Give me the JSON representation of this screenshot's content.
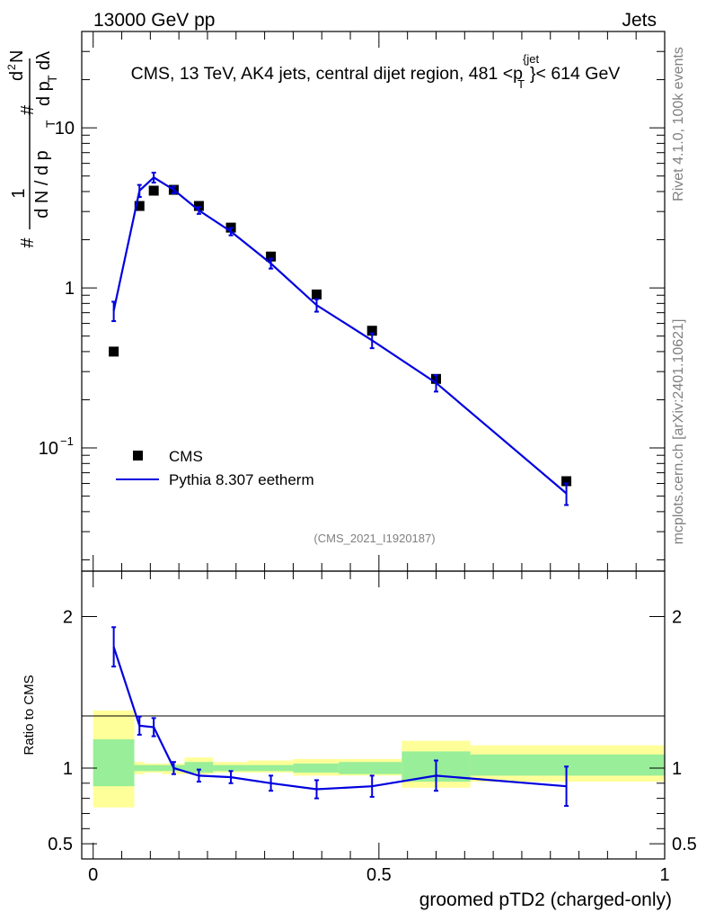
{
  "header": {
    "beam": "13000 GeV pp",
    "category": "Jets"
  },
  "side": {
    "rivet": "Rivet 4.1.0,  100k events",
    "mcplots": "mcplots.cern.ch [arXiv:2401.10621]"
  },
  "chart_data": [
    {
      "type": "scatter",
      "panel": "main",
      "title": "CMS, 13 TeV, AK4 jets, central dijet region, 481 <p",
      "title_sup": "{jet",
      "title_sub": "T",
      "title_end": "}< 614 GeV",
      "analysis": "(CMS_2021_I1920187)",
      "ylabel_parts": [
        "#",
        "1",
        "d N / d p",
        "T",
        "#",
        "d",
        "2",
        "N",
        "d p",
        "T",
        "dλ"
      ],
      "yscale": "log",
      "ylim": [
        0.017,
        40
      ],
      "xlim": [
        -0.02,
        1.0
      ],
      "ytick_labels": [
        {
          "value": 10,
          "label": "10"
        },
        {
          "value": 1,
          "label": "1"
        },
        {
          "value": 0.1,
          "base": "10",
          "exp": "−1"
        }
      ],
      "legend": [
        {
          "name": "CMS",
          "marker": "square",
          "color": "#000000"
        },
        {
          "name": "Pythia 8.307 eetherm",
          "marker": "line",
          "color": "#0000e0"
        }
      ],
      "series": [
        {
          "name": "CMS",
          "x": [
            0.036,
            0.081,
            0.106,
            0.141,
            0.185,
            0.241,
            0.311,
            0.391,
            0.488,
            0.6,
            0.828
          ],
          "y": [
            0.4,
            3.25,
            4.05,
            4.1,
            3.25,
            2.38,
            1.57,
            0.91,
            0.54,
            0.27,
            0.062
          ]
        },
        {
          "name": "Pythia 8.307 eetherm",
          "x": [
            0.036,
            0.081,
            0.106,
            0.141,
            0.185,
            0.241,
            0.311,
            0.391,
            0.488,
            0.6,
            0.828
          ],
          "y": [
            0.72,
            4.05,
            4.9,
            4.1,
            3.05,
            2.25,
            1.42,
            0.78,
            0.47,
            0.255,
            0.052
          ],
          "yerr": [
            0.1,
            0.35,
            0.35,
            0.2,
            0.15,
            0.12,
            0.1,
            0.07,
            0.05,
            0.03,
            0.008
          ]
        }
      ]
    },
    {
      "type": "line",
      "panel": "ratio",
      "ylabel": "Ratio to CMS",
      "ylim": [
        0.4,
        2.3
      ],
      "xlim": [
        -0.02,
        1.0
      ],
      "xlabel": "groomed pTD2 (charged-only)",
      "ytick_labels": [
        "0.5",
        "1",
        "2"
      ],
      "ytick_values": [
        0.5,
        1,
        2
      ],
      "xtick_labels": [
        "0",
        "0.5",
        "1"
      ],
      "xtick_values": [
        0,
        0.5,
        1
      ],
      "bands": {
        "bins": [
          [
            0.0,
            0.072
          ],
          [
            0.072,
            0.09
          ],
          [
            0.09,
            0.12
          ],
          [
            0.12,
            0.16
          ],
          [
            0.16,
            0.21
          ],
          [
            0.21,
            0.27
          ],
          [
            0.27,
            0.35
          ],
          [
            0.35,
            0.43
          ],
          [
            0.43,
            0.54
          ],
          [
            0.54,
            0.66
          ],
          [
            0.66,
            1.0
          ]
        ],
        "green": [
          [
            0.88,
            1.19
          ],
          [
            0.98,
            1.02
          ],
          [
            0.98,
            1.02
          ],
          [
            0.98,
            1.02
          ],
          [
            0.97,
            1.04
          ],
          [
            0.98,
            1.02
          ],
          [
            0.98,
            1.02
          ],
          [
            0.97,
            1.03
          ],
          [
            0.96,
            1.04
          ],
          [
            0.91,
            1.11
          ],
          [
            0.95,
            1.09
          ]
        ],
        "yellow": [
          [
            0.74,
            1.38
          ],
          [
            0.96,
            1.04
          ],
          [
            0.97,
            1.03
          ],
          [
            0.96,
            1.03
          ],
          [
            0.96,
            1.07
          ],
          [
            0.97,
            1.04
          ],
          [
            0.97,
            1.05
          ],
          [
            0.95,
            1.06
          ],
          [
            0.95,
            1.06
          ],
          [
            0.87,
            1.18
          ],
          [
            0.91,
            1.15
          ]
        ]
      },
      "series": [
        {
          "name": "Pythia 8.307 eetherm / CMS",
          "x": [
            0.036,
            0.081,
            0.106,
            0.141,
            0.185,
            0.241,
            0.311,
            0.391,
            0.488,
            0.6,
            0.828
          ],
          "y": [
            1.8,
            1.28,
            1.27,
            1.0,
            0.95,
            0.94,
            0.9,
            0.86,
            0.88,
            0.95,
            0.88
          ],
          "yerr": [
            0.13,
            0.06,
            0.06,
            0.04,
            0.04,
            0.04,
            0.05,
            0.06,
            0.07,
            0.1,
            0.13
          ]
        }
      ]
    }
  ]
}
